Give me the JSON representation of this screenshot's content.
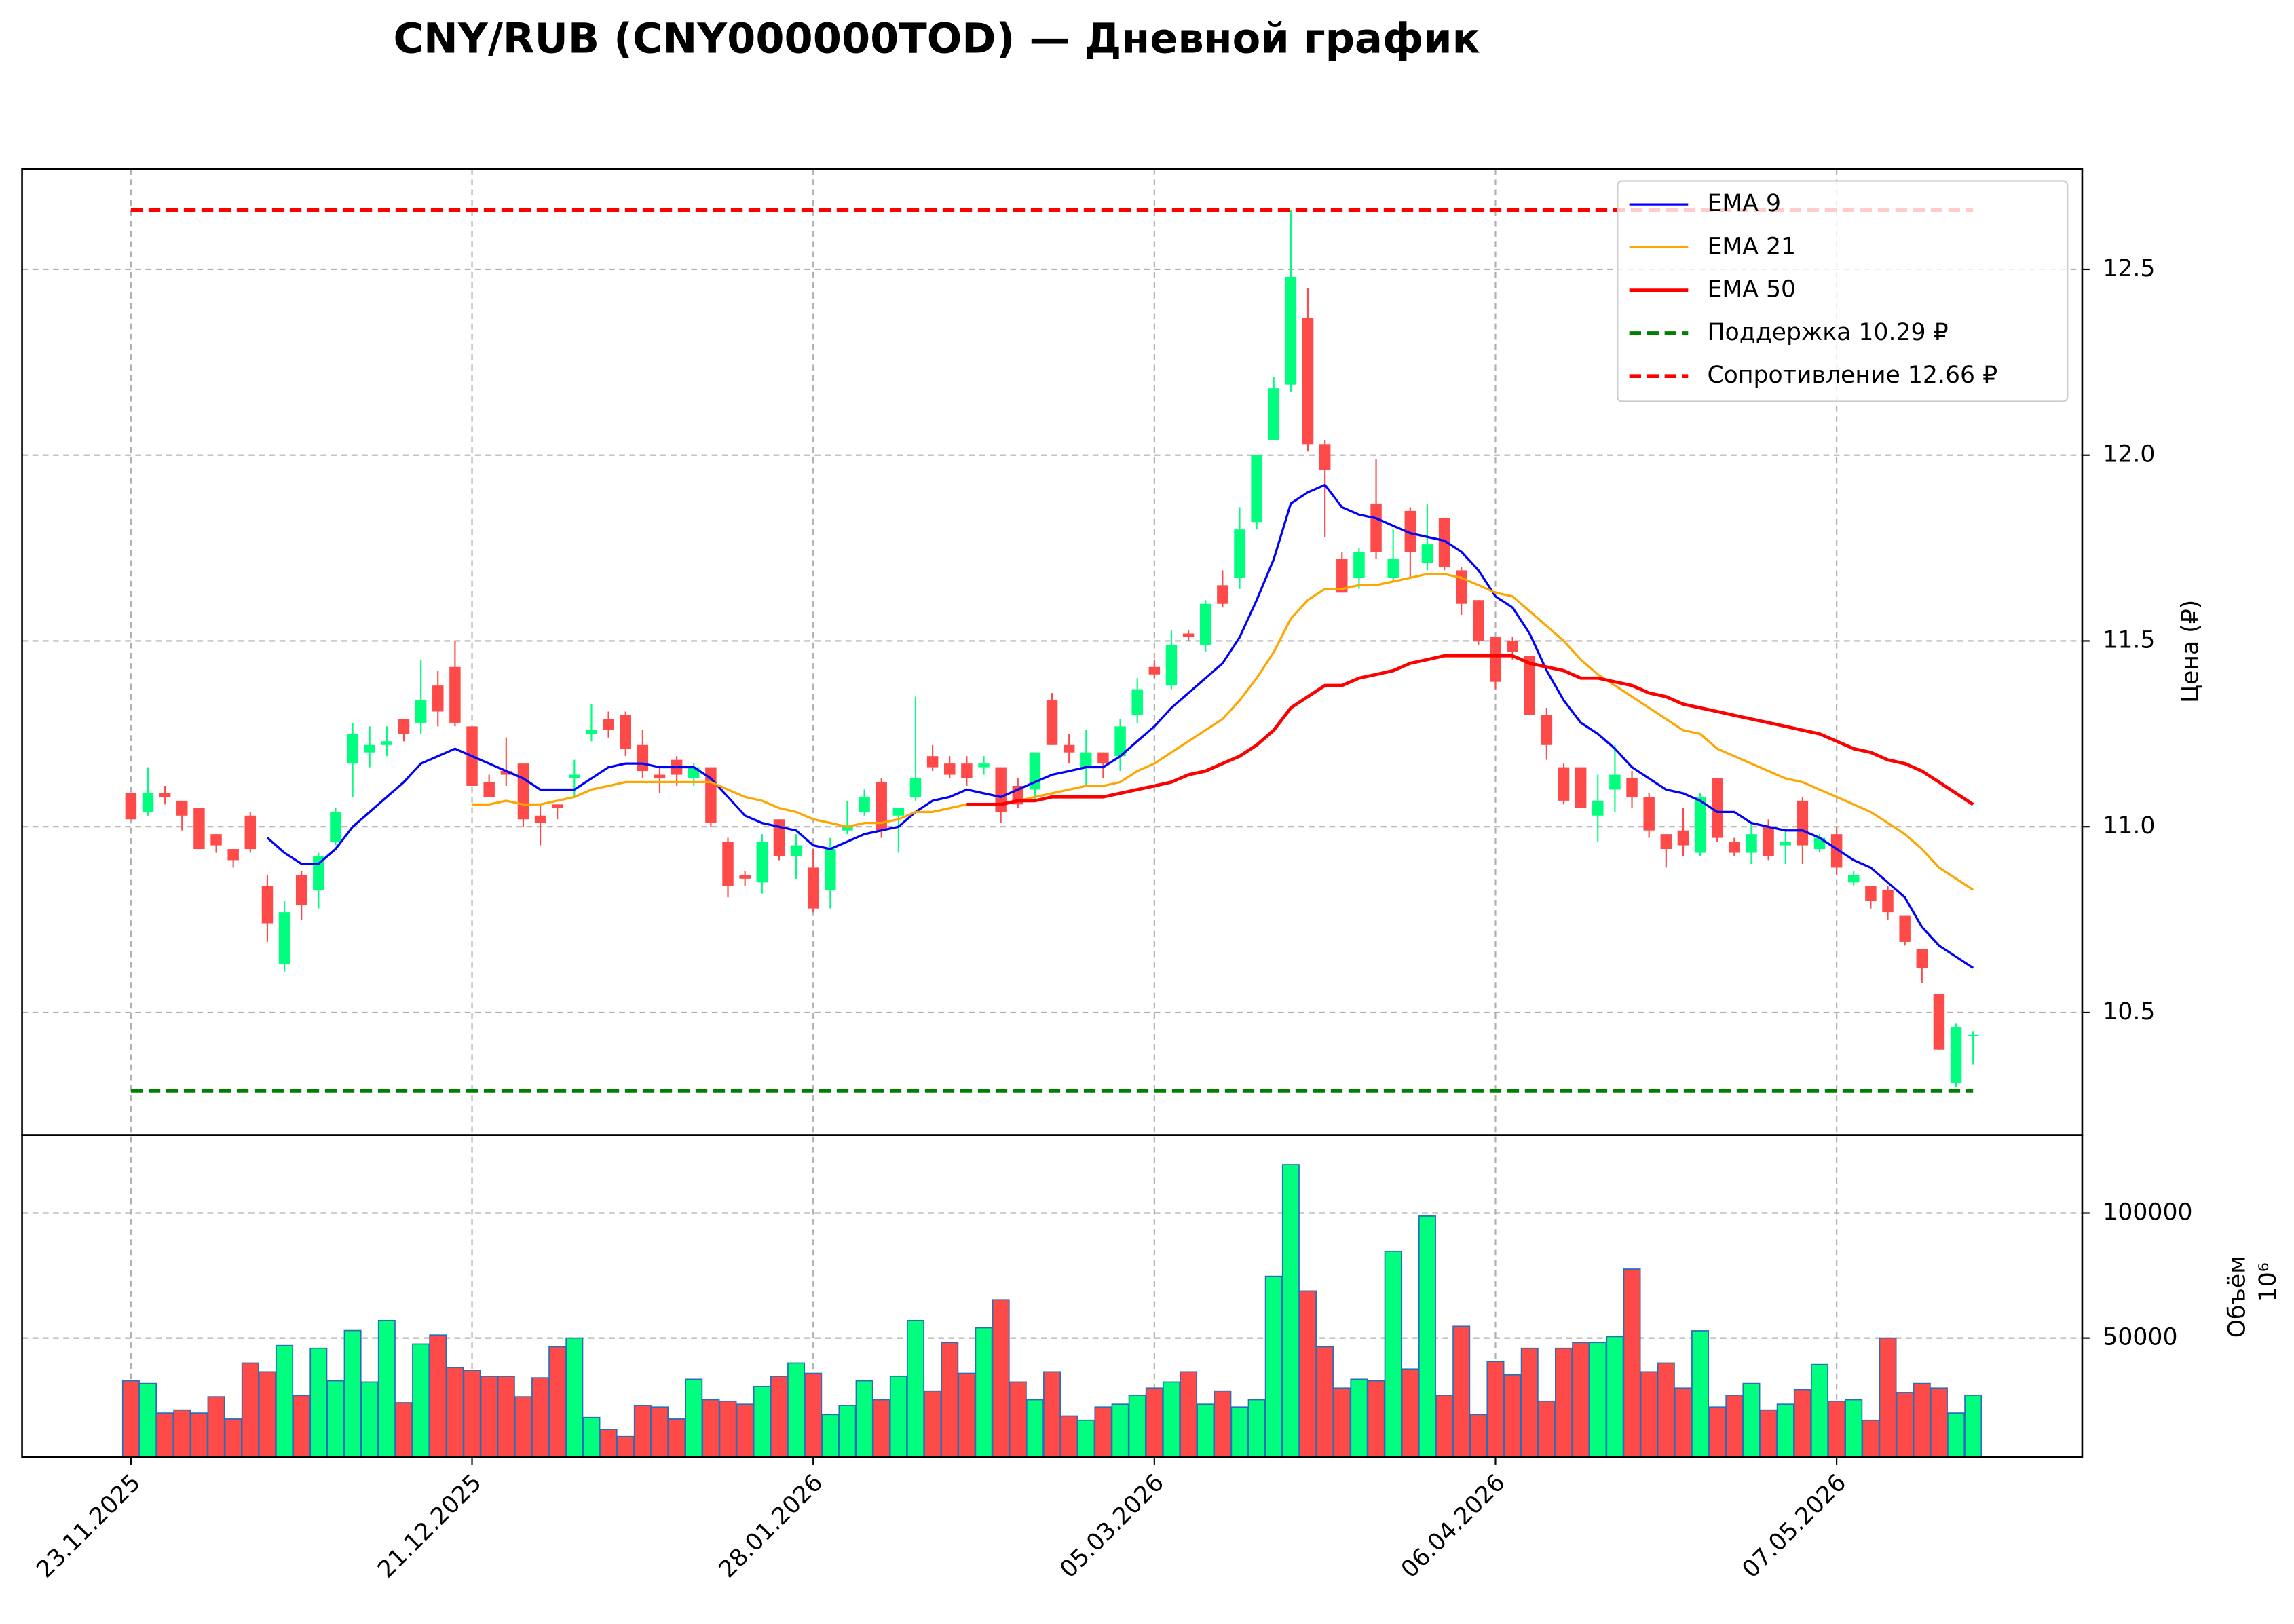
{
  "chart_data": [
    {
      "type": "candlestick",
      "title": "CNY/RUB (CNY000000TOD) — Дневной график",
      "ylabel": "Цена (₽)",
      "ylim": [
        10.17,
        12.77
      ],
      "yticks": [
        10.5,
        {
          "value": 11,
          "label": "11.0"
        },
        11.5,
        {
          "value": 12,
          "label": "12.0"
        },
        12.5
      ],
      "grid": true,
      "up_color": "#00ff7f",
      "down_color": "#ff4a4a",
      "open": [
        11.09,
        11.04,
        11.09,
        11.07,
        11.05,
        10.98,
        10.94,
        11.03,
        10.84,
        10.63,
        10.87,
        10.83,
        10.96,
        11.17,
        11.2,
        11.22,
        11.29,
        11.28,
        11.38,
        11.43,
        11.27,
        11.12,
        11.15,
        11.17,
        11.03,
        11.06,
        11.13,
        11.25,
        11.29,
        11.3,
        11.22,
        11.14,
        11.18,
        11.13,
        11.16,
        10.96,
        10.87,
        10.85,
        11.02,
        10.92,
        10.89,
        10.83,
        10.99,
        11.04,
        11.12,
        11.03,
        11.08,
        11.19,
        11.17,
        11.17,
        11.16,
        11.16,
        11.11,
        11.1,
        11.34,
        11.22,
        11.16,
        11.2,
        11.19,
        11.3,
        11.43,
        11.38,
        11.52,
        11.49,
        11.65,
        11.67,
        11.82,
        12.04,
        12.19,
        12.37,
        12.03,
        11.72,
        11.67,
        11.87,
        11.67,
        11.85,
        11.71,
        11.83,
        11.69,
        11.61,
        11.51,
        11.5,
        11.46,
        11.3,
        11.16,
        11.16,
        11.03,
        11.1,
        11.13,
        11.08,
        10.98,
        10.99,
        10.93,
        11.13,
        10.96,
        10.93,
        11.0,
        10.95,
        11.07,
        10.94,
        10.98,
        10.85,
        10.84,
        10.83,
        10.76,
        10.67,
        10.55,
        10.31,
        10.44
      ],
      "high": [
        11.09,
        11.16,
        11.11,
        11.07,
        11.05,
        10.98,
        10.94,
        11.04,
        10.87,
        10.8,
        10.88,
        10.93,
        11.05,
        11.28,
        11.27,
        11.27,
        11.29,
        11.45,
        11.42,
        11.5,
        11.27,
        11.14,
        11.24,
        11.17,
        11.06,
        11.06,
        11.18,
        11.33,
        11.31,
        11.31,
        11.26,
        11.16,
        11.19,
        11.17,
        11.16,
        10.97,
        10.88,
        10.98,
        11.02,
        10.98,
        10.94,
        10.97,
        11.07,
        11.1,
        11.13,
        11.05,
        11.35,
        11.22,
        11.19,
        11.19,
        11.19,
        11.16,
        11.13,
        11.2,
        11.36,
        11.25,
        11.26,
        11.2,
        11.29,
        11.4,
        11.45,
        11.53,
        11.53,
        11.61,
        11.69,
        11.86,
        12.0,
        12.21,
        12.66,
        12.45,
        12.04,
        11.74,
        11.75,
        11.99,
        11.8,
        11.86,
        11.87,
        11.83,
        11.7,
        11.61,
        11.51,
        11.51,
        11.46,
        11.32,
        11.17,
        11.16,
        11.14,
        11.22,
        11.15,
        11.09,
        10.98,
        11.05,
        11.09,
        11.13,
        10.97,
        11.01,
        11.02,
        10.99,
        11.08,
        10.98,
        11.0,
        10.88,
        10.84,
        10.84,
        10.76,
        10.67,
        10.55,
        10.47,
        10.45
      ],
      "low": [
        11.02,
        11.03,
        11.06,
        10.99,
        10.94,
        10.93,
        10.89,
        10.93,
        10.69,
        10.61,
        10.75,
        10.78,
        10.95,
        11.08,
        11.16,
        11.19,
        11.23,
        11.25,
        11.27,
        11.27,
        11.11,
        11.08,
        11.11,
        11.0,
        10.95,
        11.02,
        11.08,
        11.23,
        11.24,
        11.19,
        11.13,
        11.09,
        11.11,
        11.11,
        11.0,
        10.81,
        10.84,
        10.82,
        10.91,
        10.86,
        10.77,
        10.78,
        10.98,
        11.03,
        10.97,
        10.93,
        11.07,
        11.15,
        11.13,
        11.11,
        11.14,
        11.01,
        11.05,
        11.07,
        11.22,
        11.17,
        11.11,
        11.13,
        11.15,
        11.28,
        11.4,
        11.37,
        11.5,
        11.47,
        11.59,
        11.64,
        11.8,
        12.04,
        12.17,
        12.01,
        11.78,
        11.63,
        11.64,
        11.72,
        11.66,
        11.67,
        11.69,
        11.69,
        11.57,
        11.49,
        11.37,
        11.45,
        11.3,
        11.18,
        11.06,
        11.05,
        10.96,
        11.04,
        11.05,
        10.97,
        10.89,
        10.92,
        10.92,
        10.96,
        10.92,
        10.9,
        10.91,
        10.9,
        10.9,
        10.93,
        10.87,
        10.84,
        10.78,
        10.75,
        10.68,
        10.58,
        10.4,
        10.3,
        10.36
      ],
      "close": [
        11.02,
        11.09,
        11.08,
        11.03,
        10.94,
        10.95,
        10.91,
        10.94,
        10.74,
        10.77,
        10.79,
        10.92,
        11.04,
        11.25,
        11.22,
        11.23,
        11.25,
        11.34,
        11.31,
        11.28,
        11.11,
        11.08,
        11.14,
        11.02,
        11.01,
        11.05,
        11.14,
        11.26,
        11.26,
        11.21,
        11.15,
        11.13,
        11.14,
        11.16,
        11.01,
        10.84,
        10.86,
        10.96,
        10.92,
        10.95,
        10.78,
        10.94,
        11.0,
        11.08,
        10.99,
        11.05,
        11.13,
        11.16,
        11.14,
        11.13,
        11.17,
        11.04,
        11.06,
        11.2,
        11.22,
        11.2,
        11.2,
        11.17,
        11.27,
        11.37,
        11.41,
        11.49,
        11.51,
        11.6,
        11.6,
        11.8,
        12.0,
        12.18,
        12.48,
        12.03,
        11.96,
        11.63,
        11.74,
        11.74,
        11.72,
        11.74,
        11.76,
        11.7,
        11.6,
        11.5,
        11.39,
        11.47,
        11.3,
        11.22,
        11.07,
        11.05,
        11.07,
        11.14,
        11.08,
        10.99,
        10.94,
        10.95,
        11.08,
        10.97,
        10.93,
        10.98,
        10.92,
        10.96,
        10.95,
        10.97,
        10.89,
        10.87,
        10.8,
        10.77,
        10.69,
        10.62,
        10.4,
        10.46,
        10.44
      ],
      "series": [
        {
          "name": "EMA 9",
          "color": "blue",
          "values": [
            null,
            null,
            null,
            null,
            null,
            null,
            null,
            null,
            10.97,
            10.93,
            10.9,
            10.9,
            10.94,
            11.0,
            11.04,
            11.08,
            11.12,
            11.17,
            11.19,
            11.21,
            11.19,
            11.17,
            11.15,
            11.13,
            11.1,
            11.1,
            11.1,
            11.13,
            11.16,
            11.17,
            11.17,
            11.16,
            11.16,
            11.16,
            11.13,
            11.08,
            11.03,
            11.01,
            11.0,
            10.99,
            10.95,
            10.94,
            10.96,
            10.98,
            10.99,
            11.0,
            11.04,
            11.07,
            11.08,
            11.1,
            11.09,
            11.08,
            11.1,
            11.12,
            11.14,
            11.15,
            11.16,
            11.16,
            11.19,
            11.23,
            11.27,
            11.32,
            11.36,
            11.4,
            11.44,
            11.51,
            11.61,
            11.72,
            11.87,
            11.9,
            11.92,
            11.86,
            11.84,
            11.83,
            11.81,
            11.79,
            11.78,
            11.77,
            11.74,
            11.69,
            11.62,
            11.59,
            11.52,
            11.42,
            11.34,
            11.28,
            11.25,
            11.21,
            11.16,
            11.13,
            11.1,
            11.09,
            11.07,
            11.04,
            11.04,
            11.01,
            11.0,
            10.99,
            10.99,
            10.97,
            10.94,
            10.91,
            10.89,
            10.85,
            10.81,
            10.73,
            10.68,
            10.65,
            10.62
          ]
        },
        {
          "name": "EMA 21",
          "color": "orange",
          "values": [
            null,
            null,
            null,
            null,
            null,
            null,
            null,
            null,
            null,
            null,
            null,
            null,
            null,
            null,
            null,
            null,
            null,
            null,
            null,
            null,
            11.06,
            11.06,
            11.07,
            11.06,
            11.06,
            11.07,
            11.08,
            11.1,
            11.11,
            11.12,
            11.12,
            11.12,
            11.12,
            11.12,
            11.12,
            11.1,
            11.08,
            11.07,
            11.05,
            11.04,
            11.02,
            11.01,
            11.0,
            11.01,
            11.01,
            11.02,
            11.04,
            11.04,
            11.05,
            11.06,
            11.06,
            11.06,
            11.07,
            11.08,
            11.09,
            11.1,
            11.11,
            11.11,
            11.12,
            11.15,
            11.17,
            11.2,
            11.23,
            11.26,
            11.29,
            11.34,
            11.4,
            11.47,
            11.56,
            11.61,
            11.64,
            11.64,
            11.65,
            11.65,
            11.66,
            11.67,
            11.68,
            11.68,
            11.67,
            11.65,
            11.63,
            11.62,
            11.58,
            11.54,
            11.5,
            11.45,
            11.41,
            11.38,
            11.35,
            11.32,
            11.29,
            11.26,
            11.25,
            11.21,
            11.19,
            11.17,
            11.15,
            11.13,
            11.12,
            11.1,
            11.08,
            11.06,
            11.04,
            11.01,
            10.98,
            10.94,
            10.89,
            10.86,
            10.83
          ]
        },
        {
          "name": "EMA 50",
          "color": "red",
          "values": [
            null,
            null,
            null,
            null,
            null,
            null,
            null,
            null,
            null,
            null,
            null,
            null,
            null,
            null,
            null,
            null,
            null,
            null,
            null,
            null,
            null,
            null,
            null,
            null,
            null,
            null,
            null,
            null,
            null,
            null,
            null,
            null,
            null,
            null,
            null,
            null,
            null,
            null,
            null,
            null,
            null,
            null,
            null,
            null,
            null,
            null,
            null,
            null,
            null,
            11.06,
            11.06,
            11.06,
            11.07,
            11.07,
            11.08,
            11.08,
            11.08,
            11.08,
            11.09,
            11.1,
            11.11,
            11.12,
            11.14,
            11.15,
            11.17,
            11.19,
            11.22,
            11.26,
            11.32,
            11.35,
            11.38,
            11.38,
            11.4,
            11.41,
            11.42,
            11.44,
            11.45,
            11.46,
            11.46,
            11.46,
            11.46,
            11.46,
            11.44,
            11.43,
            11.42,
            11.4,
            11.4,
            11.39,
            11.38,
            11.36,
            11.35,
            11.33,
            11.32,
            11.31,
            11.3,
            11.29,
            11.28,
            11.27,
            11.26,
            11.25,
            11.23,
            11.21,
            11.2,
            11.18,
            11.17,
            11.15,
            11.12,
            11.09,
            11.06
          ]
        }
      ],
      "levels": [
        {
          "name": "Поддержка 10.29 ₽",
          "value": 10.29,
          "color": "green"
        },
        {
          "name": "Сопротивление 12.66 ₽",
          "value": 12.66,
          "color": "red"
        }
      ],
      "legend": "upper right"
    },
    {
      "type": "bar",
      "ylabel": "Объём",
      "offset_label": "10⁶",
      "ylim": [
        2350,
        131200
      ],
      "yticks": [
        50000,
        100000
      ],
      "grid": true,
      "edge_color": "#2a6fb5",
      "categories": [
        "23.11.2025",
        null,
        null,
        null,
        null,
        null,
        null,
        null,
        null,
        null,
        null,
        null,
        null,
        null,
        null,
        null,
        null,
        null,
        null,
        null,
        "21.12.2025",
        null,
        null,
        null,
        null,
        null,
        null,
        null,
        null,
        null,
        null,
        null,
        null,
        null,
        null,
        null,
        null,
        null,
        null,
        null,
        "28.01.2026",
        null,
        null,
        null,
        null,
        null,
        null,
        null,
        null,
        null,
        null,
        null,
        null,
        null,
        null,
        null,
        null,
        null,
        null,
        null,
        "05.03.2026",
        null,
        null,
        null,
        null,
        null,
        null,
        null,
        null,
        null,
        null,
        null,
        null,
        null,
        null,
        null,
        null,
        null,
        null,
        null,
        "06.04.2026",
        null,
        null,
        null,
        null,
        null,
        null,
        null,
        null,
        null,
        null,
        null,
        null,
        null,
        null,
        null,
        null,
        null,
        null,
        null,
        "07.05.2026",
        null,
        null,
        null,
        null,
        null,
        null,
        null,
        null
      ],
      "values": [
        32900,
        31800,
        20000,
        21200,
        20000,
        26500,
        17600,
        40000,
        36500,
        47000,
        27000,
        45900,
        32900,
        53000,
        32400,
        57000,
        24100,
        47600,
        51200,
        38200,
        37100,
        34700,
        34700,
        26500,
        34100,
        46500,
        50000,
        18200,
        13500,
        10600,
        23000,
        22400,
        17600,
        33500,
        25300,
        24700,
        23500,
        30600,
        34700,
        40000,
        35900,
        19400,
        23000,
        32900,
        25300,
        34700,
        57000,
        28800,
        48200,
        35900,
        54100,
        65300,
        32400,
        25300,
        36500,
        18800,
        17100,
        22400,
        23500,
        27100,
        30000,
        32400,
        36500,
        23500,
        28800,
        22400,
        25300,
        74700,
        119400,
        68800,
        46500,
        30000,
        33500,
        32900,
        84700,
        37600,
        98800,
        27100,
        54700,
        19400,
        40600,
        35300,
        45900,
        24700,
        45900,
        48200,
        48200,
        50600,
        77600,
        36500,
        40000,
        30000,
        52900,
        22400,
        27100,
        31800,
        21200,
        23500,
        29400,
        39400,
        24700,
        25300,
        17100,
        50000,
        28200,
        31800,
        30000,
        20000,
        27100
      ]
    }
  ]
}
